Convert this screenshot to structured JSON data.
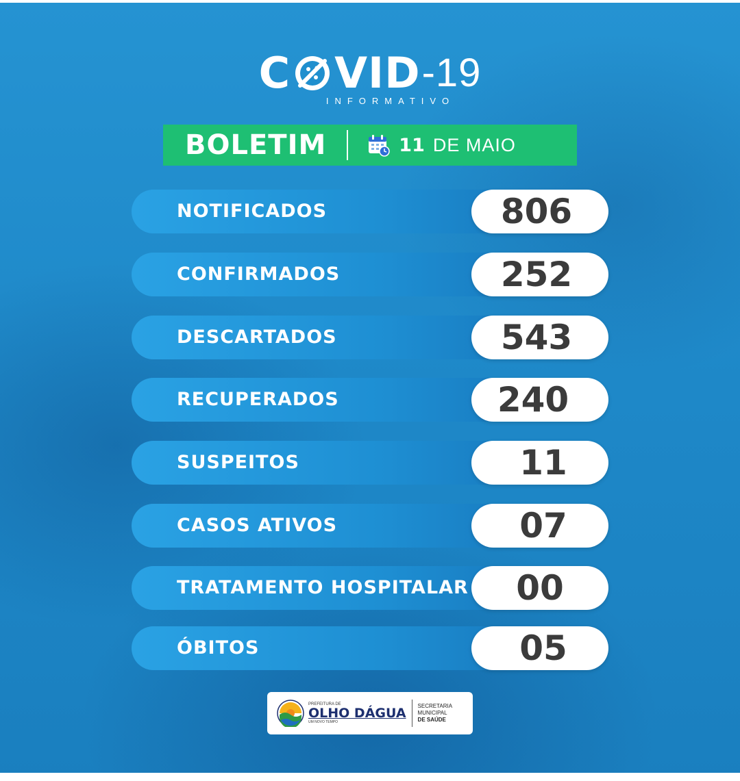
{
  "logo": {
    "pre": "C",
    "post": "VID",
    "dash_num": "-19",
    "subtitle": "INFORMATIVO"
  },
  "bulletin": {
    "title": "BOLETIM",
    "day": "11",
    "month": "DE MAIO",
    "icon": "calendar-icon"
  },
  "stats": [
    {
      "label": "NOTIFICADOS",
      "value": "806"
    },
    {
      "label": "CONFIRMADOS",
      "value": "252"
    },
    {
      "label": "DESCARTADOS",
      "value": "543"
    },
    {
      "label": "RECUPERADOS",
      "value": "240"
    },
    {
      "label": "SUSPEITOS",
      "value": "11"
    },
    {
      "label": "CASOS ATIVOS",
      "value": "07"
    },
    {
      "label": "TRATAMENTO HOSPITALAR",
      "value": "00"
    },
    {
      "label": "ÓBITOS",
      "value": "05"
    }
  ],
  "footer": {
    "prefeitura": "PREFEITURA DE",
    "city": "OLHO DÁGUA",
    "slogan": "UM NOVO TEMPO",
    "secretaria_line1": "SECRETARIA",
    "secretaria_line2": "MUNICIPAL",
    "secretaria_line3": "DE SAÚDE"
  },
  "colors": {
    "background": "#1f8fce",
    "bulletin_green": "#1ebf73",
    "pill_white": "#ffffff",
    "value_text": "#3b3b3b"
  }
}
